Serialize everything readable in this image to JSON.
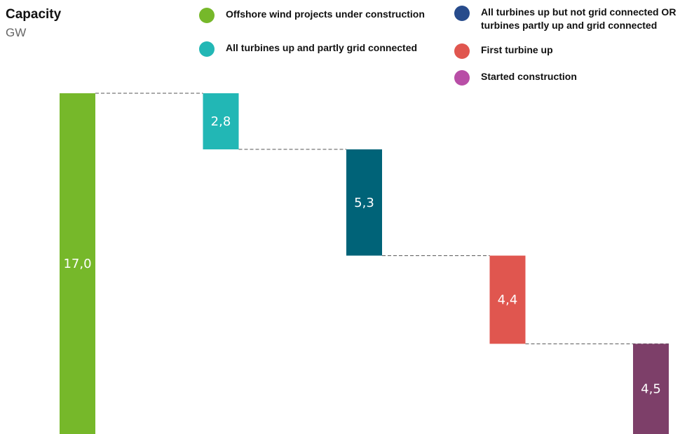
{
  "header": {
    "title": "Capacity",
    "unit": "GW"
  },
  "legend": [
    {
      "label": "Offshore wind projects under construction",
      "color": "#76b82a"
    },
    {
      "label": "All turbines up and partly grid connected",
      "color": "#22b7b5"
    },
    {
      "label": "All turbines up but not grid connected OR\nturbines partly up and grid connected",
      "color": "#274b8c"
    },
    {
      "label": "First turbine up",
      "color": "#e0564f"
    },
    {
      "label": "Started construction",
      "color": "#b84ea6"
    }
  ],
  "chart_data": {
    "type": "bar",
    "subtype": "waterfall",
    "title": "Capacity",
    "ylabel": "GW",
    "categories": [
      "Offshore wind projects under construction",
      "All turbines up and partly grid connected",
      "All turbines up but not grid connected OR turbines partly up and grid connected",
      "First turbine up",
      "Started construction"
    ],
    "values": [
      17.0,
      2.8,
      5.3,
      4.4,
      4.5
    ],
    "value_labels": [
      "17,0",
      "2,8",
      "5,3",
      "4,4",
      "4,5"
    ],
    "bar_colors": [
      "#76b82a",
      "#22b7b5",
      "#006378",
      "#e0564f",
      "#7d3f69"
    ],
    "ylim": [
      0,
      17.0
    ],
    "grid": false,
    "connectors": "dashed",
    "legend_position": "top"
  }
}
